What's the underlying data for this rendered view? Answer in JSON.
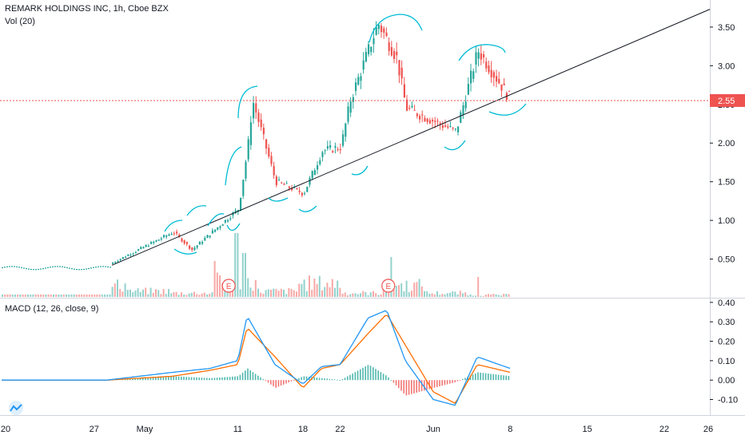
{
  "header": {
    "title": "REMARK HOLDINGS INC, 1h, Cboe BZX",
    "volume_label": "Vol (20)",
    "macd_label": "MACD (12, 26, close, 9)"
  },
  "price_axis": {
    "ticks": [
      "3.50",
      "3.00",
      "2.50",
      "2.00",
      "1.50",
      "1.00",
      "0.50"
    ],
    "last_price": "2.55"
  },
  "macd_axis": {
    "ticks": [
      "0.40",
      "0.30",
      "0.20",
      "0.10",
      "0.00",
      "-0.10"
    ]
  },
  "time_axis": {
    "ticks": [
      "20",
      "27",
      "May",
      "11",
      "18",
      "22",
      "Jun",
      "8",
      "15",
      "22",
      "26"
    ]
  },
  "markers": [
    "E",
    "E"
  ],
  "colors": {
    "up": "#26a69a",
    "down": "#ef5350",
    "macd": "#2196f3",
    "signal": "#ff6d00",
    "last_price": "#ef5350",
    "annotation": "#00bcd4",
    "trendline": "#131722"
  },
  "chart_data": [
    {
      "type": "candlestick",
      "ylim": [
        0.0,
        3.85
      ],
      "key_points": [
        {
          "time": "Apr 28",
          "price": 0.42
        },
        {
          "time": "May 4",
          "price": 0.85
        },
        {
          "time": "May 6",
          "price": 0.62
        },
        {
          "time": "May 11",
          "price": 1.15
        },
        {
          "time": "May 12",
          "price": 1.95
        },
        {
          "time": "May 12",
          "price": 2.55
        },
        {
          "time": "May 15",
          "price": 1.5
        },
        {
          "time": "May 18",
          "price": 1.35
        },
        {
          "time": "May 20",
          "price": 1.9
        },
        {
          "time": "May 22",
          "price": 1.95
        },
        {
          "time": "May 23",
          "price": 2.55
        },
        {
          "time": "May 26",
          "price": 3.55
        },
        {
          "time": "May 28",
          "price": 3.1
        },
        {
          "time": "May 29",
          "price": 2.45
        },
        {
          "time": "Jun 3",
          "price": 2.15
        },
        {
          "time": "Jun 5",
          "price": 3.2
        },
        {
          "time": "Jun 8",
          "price": 2.55
        }
      ],
      "last_price": 2.55
    },
    {
      "type": "bar",
      "series": [
        {
          "name": "Vol",
          "values": [
            0.1,
            0.5,
            0.3,
            0.15,
            0.1,
            0.4,
            0.15,
            0.35,
            0.1,
            0.3,
            0.1,
            0.05
          ]
        }
      ]
    },
    {
      "type": "line",
      "ylim": [
        -0.18,
        0.42
      ],
      "series": [
        {
          "name": "MACD",
          "x": [
            "Apr 20",
            "Apr 28",
            "May 4",
            "May 8",
            "May 11",
            "May 12",
            "May 15",
            "May 18",
            "May 20",
            "May 22",
            "May 25",
            "May 27",
            "May 29",
            "Jun 1",
            "Jun 3",
            "Jun 5",
            "Jun 8"
          ],
          "values": [
            0.0,
            0.0,
            0.04,
            0.06,
            0.1,
            0.33,
            0.08,
            -0.02,
            0.07,
            0.08,
            0.32,
            0.36,
            0.1,
            -0.1,
            -0.13,
            0.12,
            0.06
          ]
        },
        {
          "name": "Signal",
          "x": [
            "Apr 20",
            "Apr 28",
            "May 4",
            "May 8",
            "May 11",
            "May 12",
            "May 15",
            "May 18",
            "May 20",
            "May 22",
            "May 25",
            "May 27",
            "May 29",
            "Jun 1",
            "Jun 3",
            "Jun 5",
            "Jun 8"
          ],
          "values": [
            0.0,
            0.0,
            0.02,
            0.05,
            0.08,
            0.27,
            0.12,
            -0.04,
            0.06,
            0.08,
            0.24,
            0.34,
            0.18,
            -0.06,
            -0.12,
            0.08,
            0.04
          ]
        }
      ]
    }
  ]
}
